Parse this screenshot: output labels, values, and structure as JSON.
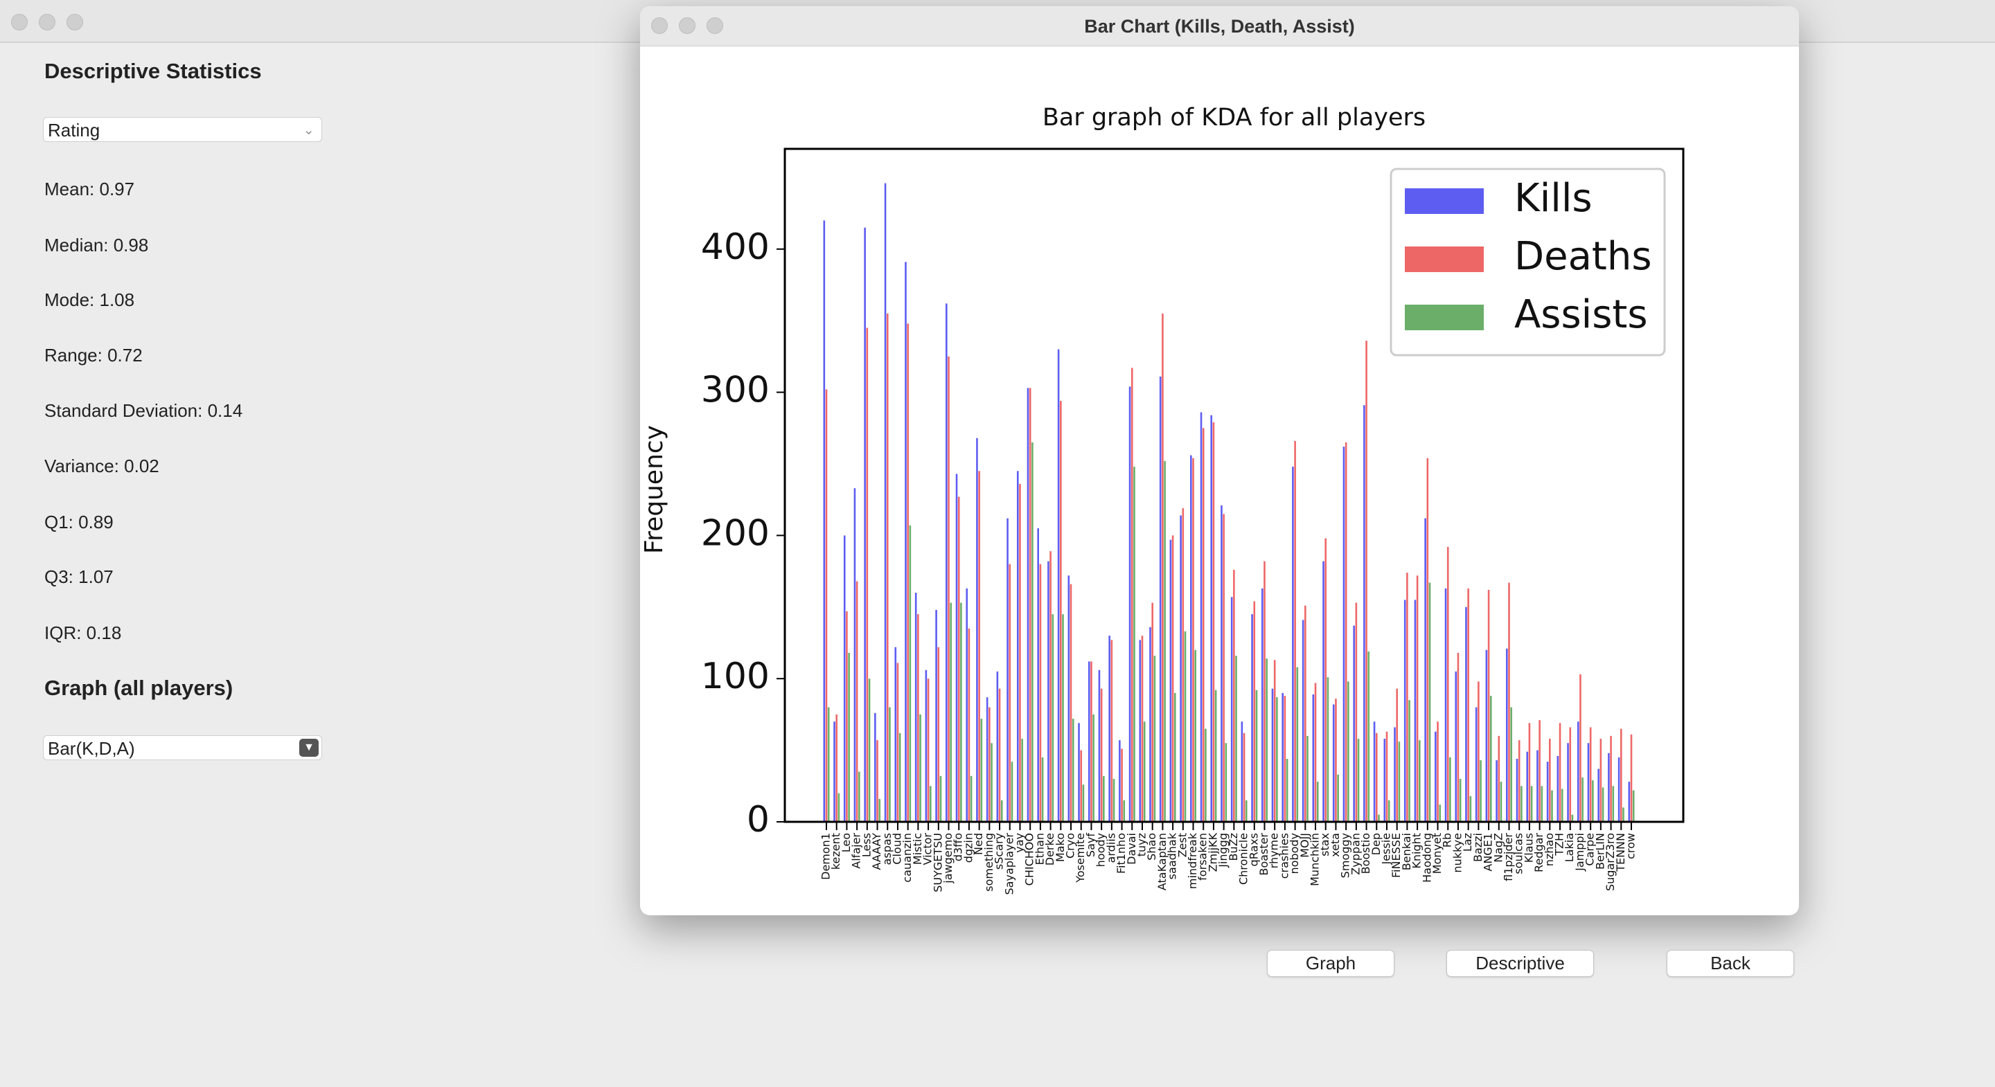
{
  "app": {
    "panel_title": "Descriptive Statistics",
    "metric_select": "Rating",
    "stats": [
      "Mean: 0.97",
      "Median: 0.98",
      "Mode: 1.08",
      "Range: 0.72",
      "Standard Deviation: 0.14",
      "Variance: 0.02",
      "Q1: 0.89",
      "Q3: 1.07",
      "IQR: 0.18"
    ],
    "graph_title": "Graph (all players)",
    "graph_select": "Bar(K,D,A)",
    "window_title": "Bar Chart (Kills, Death, Assist)",
    "buttons": [
      "Graph",
      "Descriptive",
      "Back"
    ]
  },
  "chart_data": {
    "type": "bar",
    "title": "Bar graph of KDA for all players",
    "ylabel": "Frequency",
    "categories": [
      "Demon1",
      "kezent",
      "Leo",
      "Alfajer",
      "Less",
      "AAAAY",
      "aspas",
      "Cloud",
      "cauanzin",
      "Mistic",
      "Victor",
      "SUYGETSU",
      "jawgemo",
      "d3ffo",
      "dgzin",
      "Ned",
      "something",
      "sScary",
      "Sayaplayer",
      "yay",
      "CHICHOO",
      "Ethan",
      "Derke",
      "Mako",
      "Cryo",
      "Yosemite",
      "Sayf",
      "hoody",
      "ardiis",
      "Fit1nho",
      "Davai",
      "tuyz",
      "Shao",
      "AtaKaptan",
      "saadhak",
      "Zest",
      "mindfreak",
      "forsaken",
      "ZmjjKK",
      "Jinggg",
      "BuZz",
      "Chronicle",
      "qRaxs",
      "Boaster",
      "rhyme",
      "crashies",
      "nobody",
      "MOJJ",
      "Munchkin",
      "stax",
      "xeta",
      "Smoggy",
      "Zyppan",
      "Boostio",
      "Dep",
      "Jessie",
      "FiNESSE",
      "Benkai",
      "Knight",
      "Haodong",
      "Monyet",
      "Rb",
      "nukkye",
      "Laz",
      "Bazzi",
      "ANGE1",
      "NagZ",
      "fl1pzjder",
      "soulcas",
      "Klaus",
      "Redgar",
      "nzhao",
      "TZH",
      "Lakia",
      "Jamppi",
      "Carpe",
      "BerLIN",
      "SugarZ3ro",
      "TENNN",
      "crow"
    ],
    "series": [
      {
        "name": "Kills",
        "color": "#4b4bf0",
        "values": [
          420,
          70,
          200,
          233,
          415,
          76,
          446,
          122,
          391,
          160,
          106,
          148,
          362,
          243,
          163,
          268,
          87,
          105,
          212,
          245,
          303,
          205,
          182,
          330,
          172,
          69,
          112,
          106,
          130,
          57,
          304,
          127,
          136,
          311,
          197,
          214,
          256,
          286,
          284,
          221,
          157,
          70,
          145,
          163,
          93,
          90,
          248,
          141,
          89,
          182,
          82,
          262,
          137,
          291,
          70,
          58,
          66,
          155,
          155,
          212,
          63,
          163,
          105,
          150,
          80,
          120,
          43,
          121,
          44,
          49,
          50,
          42,
          46,
          55,
          70,
          55,
          37,
          48,
          45,
          28
        ]
      },
      {
        "name": "Deaths",
        "color": "#ec5656",
        "values": [
          302,
          75,
          147,
          168,
          345,
          57,
          355,
          111,
          348,
          145,
          100,
          122,
          325,
          227,
          135,
          245,
          80,
          93,
          180,
          236,
          303,
          180,
          189,
          294,
          166,
          50,
          112,
          93,
          127,
          51,
          317,
          130,
          153,
          355,
          200,
          219,
          254,
          275,
          279,
          215,
          176,
          62,
          154,
          182,
          113,
          88,
          266,
          151,
          97,
          198,
          86,
          265,
          153,
          336,
          62,
          63,
          93,
          174,
          172,
          254,
          70,
          192,
          118,
          163,
          98,
          162,
          60,
          167,
          57,
          69,
          71,
          58,
          69,
          66,
          103,
          66,
          58,
          60,
          65,
          61
        ]
      },
      {
        "name": "Assists",
        "color": "#5aa55a",
        "values": [
          80,
          20,
          118,
          35,
          100,
          16,
          80,
          62,
          207,
          75,
          25,
          32,
          153,
          153,
          32,
          72,
          55,
          15,
          42,
          58,
          265,
          45,
          145,
          145,
          72,
          26,
          75,
          32,
          30,
          15,
          248,
          70,
          116,
          252,
          90,
          133,
          120,
          65,
          92,
          55,
          116,
          15,
          92,
          114,
          87,
          44,
          108,
          60,
          28,
          101,
          33,
          98,
          58,
          119,
          5,
          15,
          56,
          85,
          57,
          167,
          12,
          45,
          30,
          18,
          43,
          88,
          28,
          80,
          25,
          25,
          25,
          22,
          23,
          5,
          31,
          29,
          24,
          25,
          10,
          22
        ]
      }
    ],
    "ylim": [
      0,
      470
    ],
    "yticks": [
      0,
      100,
      200,
      300,
      400
    ],
    "grid": false,
    "legend": "upper right"
  }
}
